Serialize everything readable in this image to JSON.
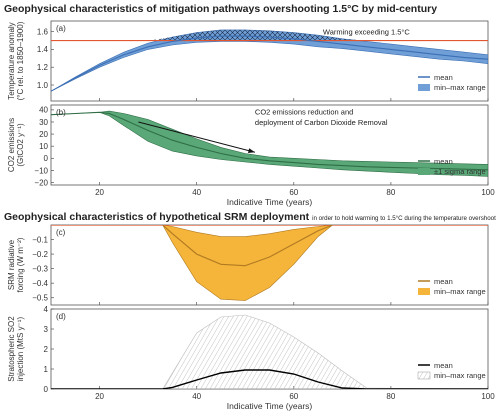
{
  "headings": {
    "top": "Geophysical characteristics of mitigation pathways overshooting 1.5°C by mid-century",
    "bottom": "Geophysical characteristics of hypothetical SRM deployment",
    "bottom_note": "in order to hold warming to 1.5°C during the temperature overshoot"
  },
  "chart_data": [
    {
      "type": "area",
      "panel_label": "(a)",
      "ylabel": [
        "Temperature anomaly",
        "(°C rel. to 1850–1900)"
      ],
      "xlim": [
        10,
        100
      ],
      "ylim": [
        0.82,
        1.72
      ],
      "yticks": [
        1.0,
        1.2,
        1.4,
        1.6
      ],
      "ytick_labels": [
        "1.0",
        "1.2",
        "1.4",
        "1.6"
      ],
      "x": [
        10,
        15,
        20,
        25,
        30,
        35,
        40,
        45,
        50,
        55,
        60,
        65,
        70,
        75,
        80,
        85,
        90,
        95,
        100
      ],
      "series": [
        {
          "name": "mean",
          "values": [
            0.93,
            1.08,
            1.22,
            1.34,
            1.43,
            1.49,
            1.53,
            1.55,
            1.55,
            1.54,
            1.52,
            1.49,
            1.46,
            1.43,
            1.4,
            1.37,
            1.34,
            1.31,
            1.29
          ]
        },
        {
          "name": "min–max range",
          "lower": [
            0.93,
            1.07,
            1.2,
            1.31,
            1.4,
            1.45,
            1.48,
            1.49,
            1.49,
            1.48,
            1.46,
            1.43,
            1.41,
            1.38,
            1.35,
            1.32,
            1.29,
            1.27,
            1.24
          ],
          "upper": [
            0.93,
            1.09,
            1.24,
            1.37,
            1.47,
            1.54,
            1.59,
            1.62,
            1.62,
            1.61,
            1.59,
            1.56,
            1.52,
            1.49,
            1.46,
            1.43,
            1.4,
            1.37,
            1.34
          ]
        }
      ],
      "reference_line": {
        "y": 1.5
      },
      "annotation": "Warming exceeding 1.5°C",
      "legend": [
        "mean",
        "min–max range"
      ]
    },
    {
      "type": "area",
      "panel_label": "(b)",
      "ylabel": [
        "CO2 emissions",
        "(GtCO2 y⁻¹)"
      ],
      "xlim": [
        10,
        100
      ],
      "ylim": [
        -22,
        44
      ],
      "yticks": [
        -20,
        -10,
        0,
        10,
        20,
        30,
        40
      ],
      "ytick_labels": [
        "−20",
        "−10",
        "0",
        "10",
        "20",
        "30",
        "40"
      ],
      "x": [
        10,
        15,
        20,
        22,
        25,
        30,
        35,
        40,
        45,
        50,
        55,
        60,
        65,
        70,
        75,
        80,
        85,
        90,
        95,
        100
      ],
      "series": [
        {
          "name": "mean",
          "values": [
            36,
            37,
            38,
            37,
            32,
            23,
            15,
            9,
            4,
            0,
            -2,
            -3.5,
            -5,
            -6,
            -7,
            -7.5,
            -8,
            -8.5,
            -9,
            -9.5
          ]
        },
        {
          "name": "±1 sigma range",
          "lower": [
            36,
            37,
            38,
            35,
            27,
            14,
            6,
            2,
            -1,
            -3,
            -5,
            -6.5,
            -8,
            -9.5,
            -10.5,
            -11.5,
            -12.5,
            -13.5,
            -14,
            -15
          ],
          "upper": [
            36,
            37,
            38,
            39,
            37,
            32,
            24,
            16,
            9,
            4,
            1,
            0,
            -1,
            -2,
            -2.5,
            -3,
            -3.5,
            -4,
            -4.5,
            -5
          ]
        }
      ],
      "annotation": [
        "CO2 emissions reduction and",
        "deployment of Carbon Dioxide Removal"
      ],
      "legend": [
        "mean",
        "±1 sigma range"
      ]
    },
    {
      "type": "area",
      "panel_label": "(c)",
      "ylabel": [
        "SRM radiative",
        "forcing (W m⁻²)"
      ],
      "xlim": [
        10,
        100
      ],
      "ylim": [
        -0.55,
        0.0
      ],
      "yticks": [
        -0.1,
        -0.2,
        -0.3,
        -0.4,
        -0.5
      ],
      "ytick_labels": [
        "−0.1",
        "−0.2",
        "−0.3",
        "−0.4",
        "−0.5"
      ],
      "x": [
        33,
        35,
        40,
        45,
        50,
        55,
        60,
        65,
        68
      ],
      "series": [
        {
          "name": "mean",
          "values": [
            0.0,
            -0.06,
            -0.2,
            -0.27,
            -0.28,
            -0.22,
            -0.13,
            -0.04,
            0.0
          ]
        },
        {
          "name": "min–max range",
          "lower": [
            0.0,
            -0.12,
            -0.39,
            -0.51,
            -0.52,
            -0.43,
            -0.27,
            -0.08,
            0.0
          ],
          "upper": [
            0.0,
            -0.01,
            -0.05,
            -0.08,
            -0.08,
            -0.06,
            -0.03,
            -0.01,
            0.0
          ]
        }
      ],
      "reference_line": {
        "y": 0.0
      },
      "legend": [
        "mean",
        "min–max range"
      ]
    },
    {
      "type": "area",
      "panel_label": "(d)",
      "ylabel": [
        "Stratospheric SO2",
        "injection (MtS y⁻¹)"
      ],
      "xlim": [
        10,
        100
      ],
      "ylim": [
        0,
        4
      ],
      "yticks": [
        0,
        1,
        2,
        3,
        4
      ],
      "ytick_labels": [
        "0",
        "1",
        "2",
        "3",
        "4"
      ],
      "xticks": [
        20,
        40,
        60,
        80,
        100
      ],
      "xtick_labels": [
        "20",
        "40",
        "60",
        "80",
        "100"
      ],
      "xlabel": "Indicative Time (years)",
      "x": [
        10,
        33,
        35,
        40,
        45,
        50,
        55,
        60,
        65,
        70,
        75,
        100
      ],
      "series": [
        {
          "name": "mean",
          "values": [
            0,
            0,
            0.08,
            0.45,
            0.8,
            0.95,
            0.95,
            0.75,
            0.35,
            0.05,
            0,
            0
          ]
        },
        {
          "name": "min–max range",
          "lower": [
            0,
            0,
            0,
            0,
            0,
            0,
            0,
            0,
            0,
            0,
            0,
            0
          ],
          "upper": [
            0,
            0,
            0.8,
            2.8,
            3.6,
            3.7,
            3.3,
            2.6,
            1.8,
            0.9,
            0.05,
            0
          ]
        }
      ],
      "legend": [
        "mean",
        "min–max range"
      ]
    }
  ],
  "colors": {
    "blue_fill": "#6f9fd6",
    "blue_line": "#3c6fb5",
    "green_fill": "#5aa878",
    "green_line": "#2f6e45",
    "orange_fill": "#f5b43a",
    "orange_line": "#b07a22",
    "gray_fill": "#9a9a9a",
    "red_line": "#e2572f",
    "black": "#000000"
  }
}
